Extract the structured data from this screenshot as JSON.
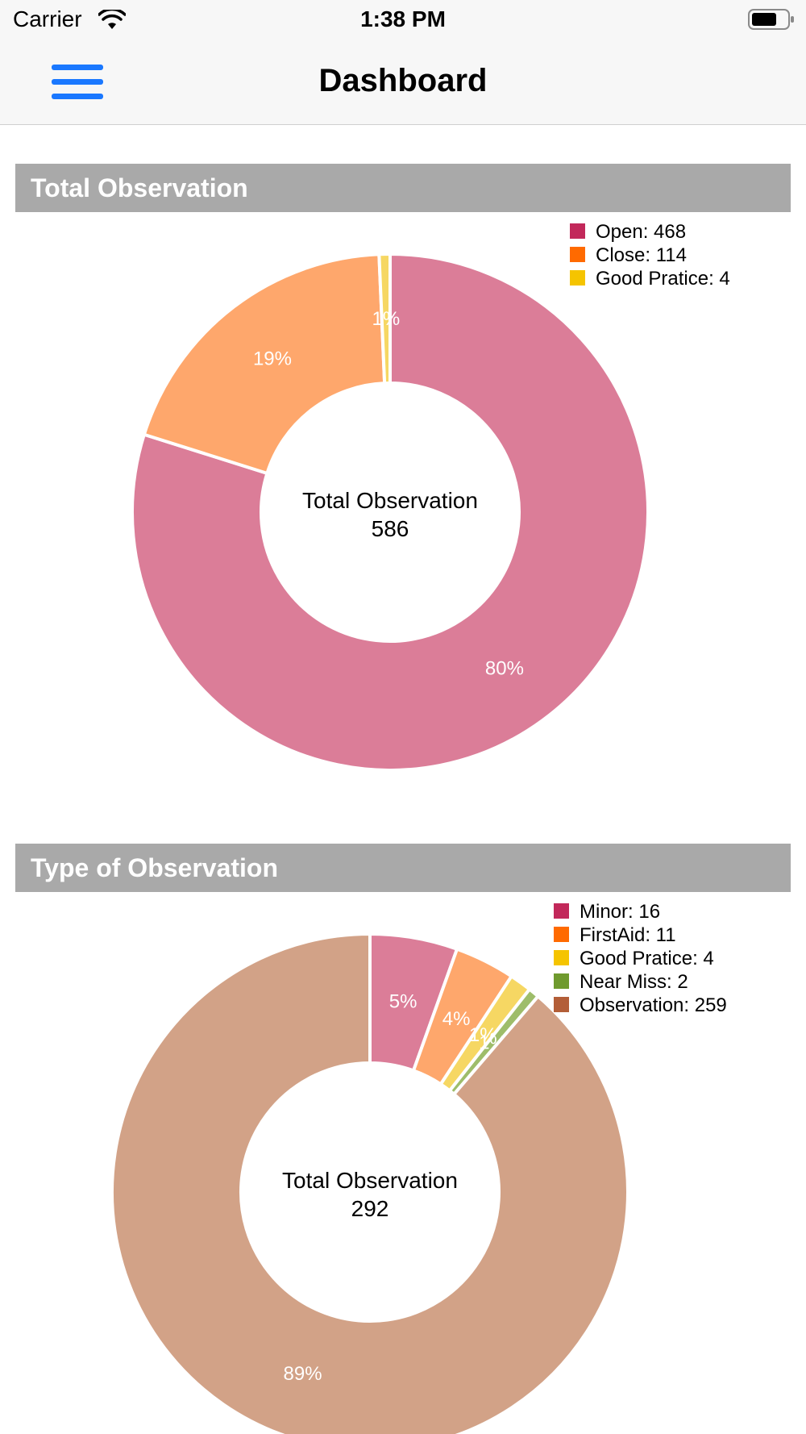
{
  "status_bar": {
    "carrier": "Carrier",
    "time": "1:38 PM"
  },
  "nav": {
    "title": "Dashboard",
    "menu_icon": "hamburger-menu-icon"
  },
  "sections": [
    {
      "title": "Total Observation"
    },
    {
      "title": "Type of Observation"
    }
  ],
  "chart_data": [
    {
      "type": "pie",
      "title": "Total Observation",
      "center_label": "Total Observation",
      "center_value": "586",
      "labels": [
        "Open",
        "Close",
        "Good Pratice"
      ],
      "legend": [
        "Open: 468",
        "Close: 114",
        "Good Pratice: 4"
      ],
      "values": [
        468,
        114,
        4
      ],
      "percent_labels": [
        "80%",
        "19%",
        "1%"
      ],
      "legend_colors": [
        "#c2285a",
        "#ff6a00",
        "#f5c400"
      ],
      "slice_colors": [
        "#db7d98",
        "#fea76c",
        "#f6d763"
      ],
      "legend_position": "top-right"
    },
    {
      "type": "pie",
      "title": "Type of Observation",
      "center_label": "Total Observation",
      "center_value": "292",
      "labels": [
        "Minor",
        "FirstAid",
        "Good Pratice",
        "Near Miss",
        "Observation"
      ],
      "legend": [
        "Minor: 16",
        "FirstAid: 11",
        "Good Pratice: 4",
        "Near Miss: 2",
        "Observation: 259"
      ],
      "values": [
        16,
        11,
        4,
        2,
        259
      ],
      "percent_labels": [
        "5%",
        "4%",
        "1%",
        "1%",
        "89%"
      ],
      "legend_colors": [
        "#c2285a",
        "#ff6a00",
        "#f5c400",
        "#6f9a2e",
        "#b35e38"
      ],
      "slice_colors": [
        "#db7d98",
        "#fea76c",
        "#f6d763",
        "#9ebd6a",
        "#d2a287"
      ],
      "legend_position": "top-right"
    }
  ]
}
